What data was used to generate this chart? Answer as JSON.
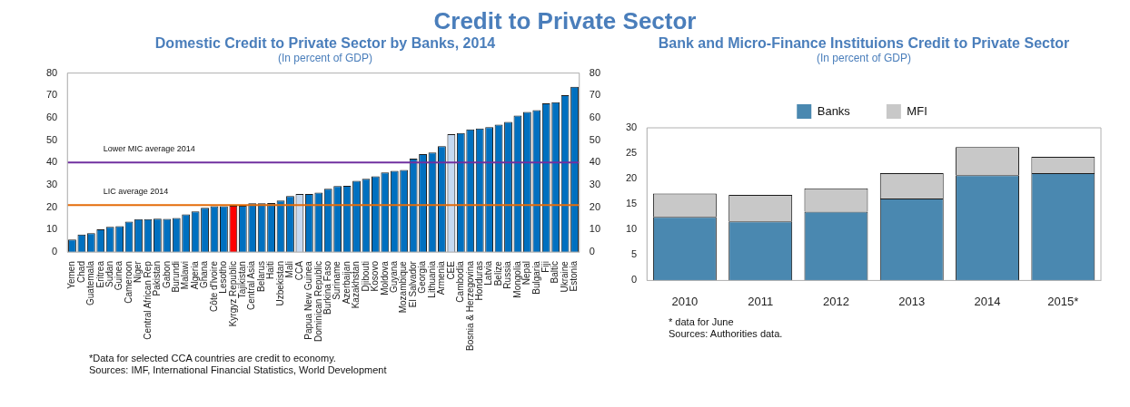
{
  "chart_data": [
    {
      "type": "other",
      "title": "Credit to Private Sector"
    },
    {
      "type": "bar",
      "title": "Domestic Credit to Private Sector by Banks, 2014",
      "subtitle": "(In percent of GDP)",
      "categories": [
        "Yemen",
        "Chad",
        "Guatemala",
        "Eritrea",
        "Sudan",
        "Guinea",
        "Cameroon",
        "Niger",
        "Central African Rep",
        "Pakistan",
        "Gabon",
        "Burundi",
        "Malawi",
        "Algeria",
        "Ghana",
        "Côte d'Ivoire",
        "Lesotho",
        "Kyrgyz Republic",
        "Tajikistan",
        "Central Asia",
        "Belarus",
        "Haiti",
        "Uzbekistan",
        "Mali",
        "CCA",
        "Papua New Guinea",
        "Dominican Republic",
        "Burkina Faso",
        "Suriname",
        "Azerbaijan",
        "Kazakhstan",
        "Djibouti",
        "Kosovo",
        "Moldova",
        "Guyana",
        "Mozambique",
        "El Salvador",
        "Georgia",
        "Lithuania",
        "Armenia",
        "CEE",
        "Cambodia",
        "Bosnia & Herzegovina",
        "Honduras",
        "Latvia",
        "Belize",
        "Russia",
        "Mongolia",
        "Nepal",
        "Bulgaria",
        "Fiji",
        "Baltic",
        "Ukraine",
        "Estonia"
      ],
      "values": [
        5.6,
        7.8,
        8.4,
        10.2,
        11.3,
        11.6,
        13.6,
        14.7,
        14.7,
        14.9,
        14.8,
        15.2,
        16.8,
        18.2,
        19.8,
        20.5,
        20.5,
        20.7,
        20.7,
        21.8,
        21.8,
        21.9,
        23.0,
        25.0,
        26.0,
        26.0,
        26.6,
        28.3,
        29.5,
        29.6,
        31.8,
        32.7,
        33.9,
        35.6,
        36.3,
        36.7,
        41.8,
        43.8,
        44.5,
        47.3,
        52.7,
        53.2,
        54.8,
        55.2,
        55.8,
        56.9,
        58.2,
        61.0,
        62.6,
        63.4,
        66.5,
        67.0,
        70.1,
        73.9
      ],
      "colors": [
        "#0070c0",
        "#0070c0",
        "#0070c0",
        "#0070c0",
        "#0070c0",
        "#0070c0",
        "#0070c0",
        "#0070c0",
        "#0070c0",
        "#0070c0",
        "#0070c0",
        "#0070c0",
        "#0070c0",
        "#0070c0",
        "#0070c0",
        "#0070c0",
        "#0070c0",
        "#ff0000",
        "#0070c0",
        "#0070c0",
        "#0070c0",
        "#0070c0",
        "#0070c0",
        "#0070c0",
        "#c5d9f1",
        "#0070c0",
        "#0070c0",
        "#0070c0",
        "#0070c0",
        "#0070c0",
        "#0070c0",
        "#0070c0",
        "#0070c0",
        "#0070c0",
        "#0070c0",
        "#0070c0",
        "#0070c0",
        "#0070c0",
        "#0070c0",
        "#0070c0",
        "#c5d9f1",
        "#0070c0",
        "#0070c0",
        "#0070c0",
        "#0070c0",
        "#0070c0",
        "#0070c0",
        "#0070c0",
        "#0070c0",
        "#0070c0",
        "#0070c0",
        "#0070c0",
        "#0070c0",
        "#0070c0"
      ],
      "ylim": [
        0,
        80
      ],
      "yticks": [
        0,
        10,
        20,
        30,
        40,
        50,
        60,
        70,
        80
      ],
      "y2lim": [
        0,
        80
      ],
      "y2ticks": [
        0,
        10,
        20,
        30,
        40,
        50,
        60,
        70,
        80
      ],
      "ref_lines": [
        {
          "axis": "y",
          "value": 40,
          "label": "Lower MIC average 2014",
          "color": "#7030a0"
        },
        {
          "axis": "y",
          "value": 21,
          "label": "LIC average 2014",
          "color": "#e46c0a"
        }
      ],
      "grid": false,
      "legend": false,
      "annotations": [
        "*Data for selected CCA countries are credit to economy.",
        "Sources: IMF, International Financial Statistics, World Development"
      ]
    },
    {
      "type": "bar",
      "title": "Bank and Micro-Finance Instituions Credit to Private Sector",
      "subtitle": "(In percent of GDP)",
      "categories": [
        "2010",
        "2011",
        "2012",
        "2013",
        "2014",
        "2015*"
      ],
      "series": [
        {
          "name": "Banks",
          "color": "#4a88b0",
          "values": [
            12.5,
            11.6,
            13.5,
            16.1,
            20.7,
            21.1
          ]
        },
        {
          "name": "MFI",
          "color": "#c8c8c8",
          "values": [
            4.6,
            5.2,
            4.6,
            5.0,
            5.5,
            3.2
          ]
        }
      ],
      "stacked": true,
      "ylim": [
        0,
        30
      ],
      "yticks": [
        0,
        5,
        10,
        15,
        20,
        25,
        30
      ],
      "grid": false,
      "legend": "top",
      "annotations": [
        "* data for June",
        "Sources: Authorities data."
      ]
    }
  ]
}
